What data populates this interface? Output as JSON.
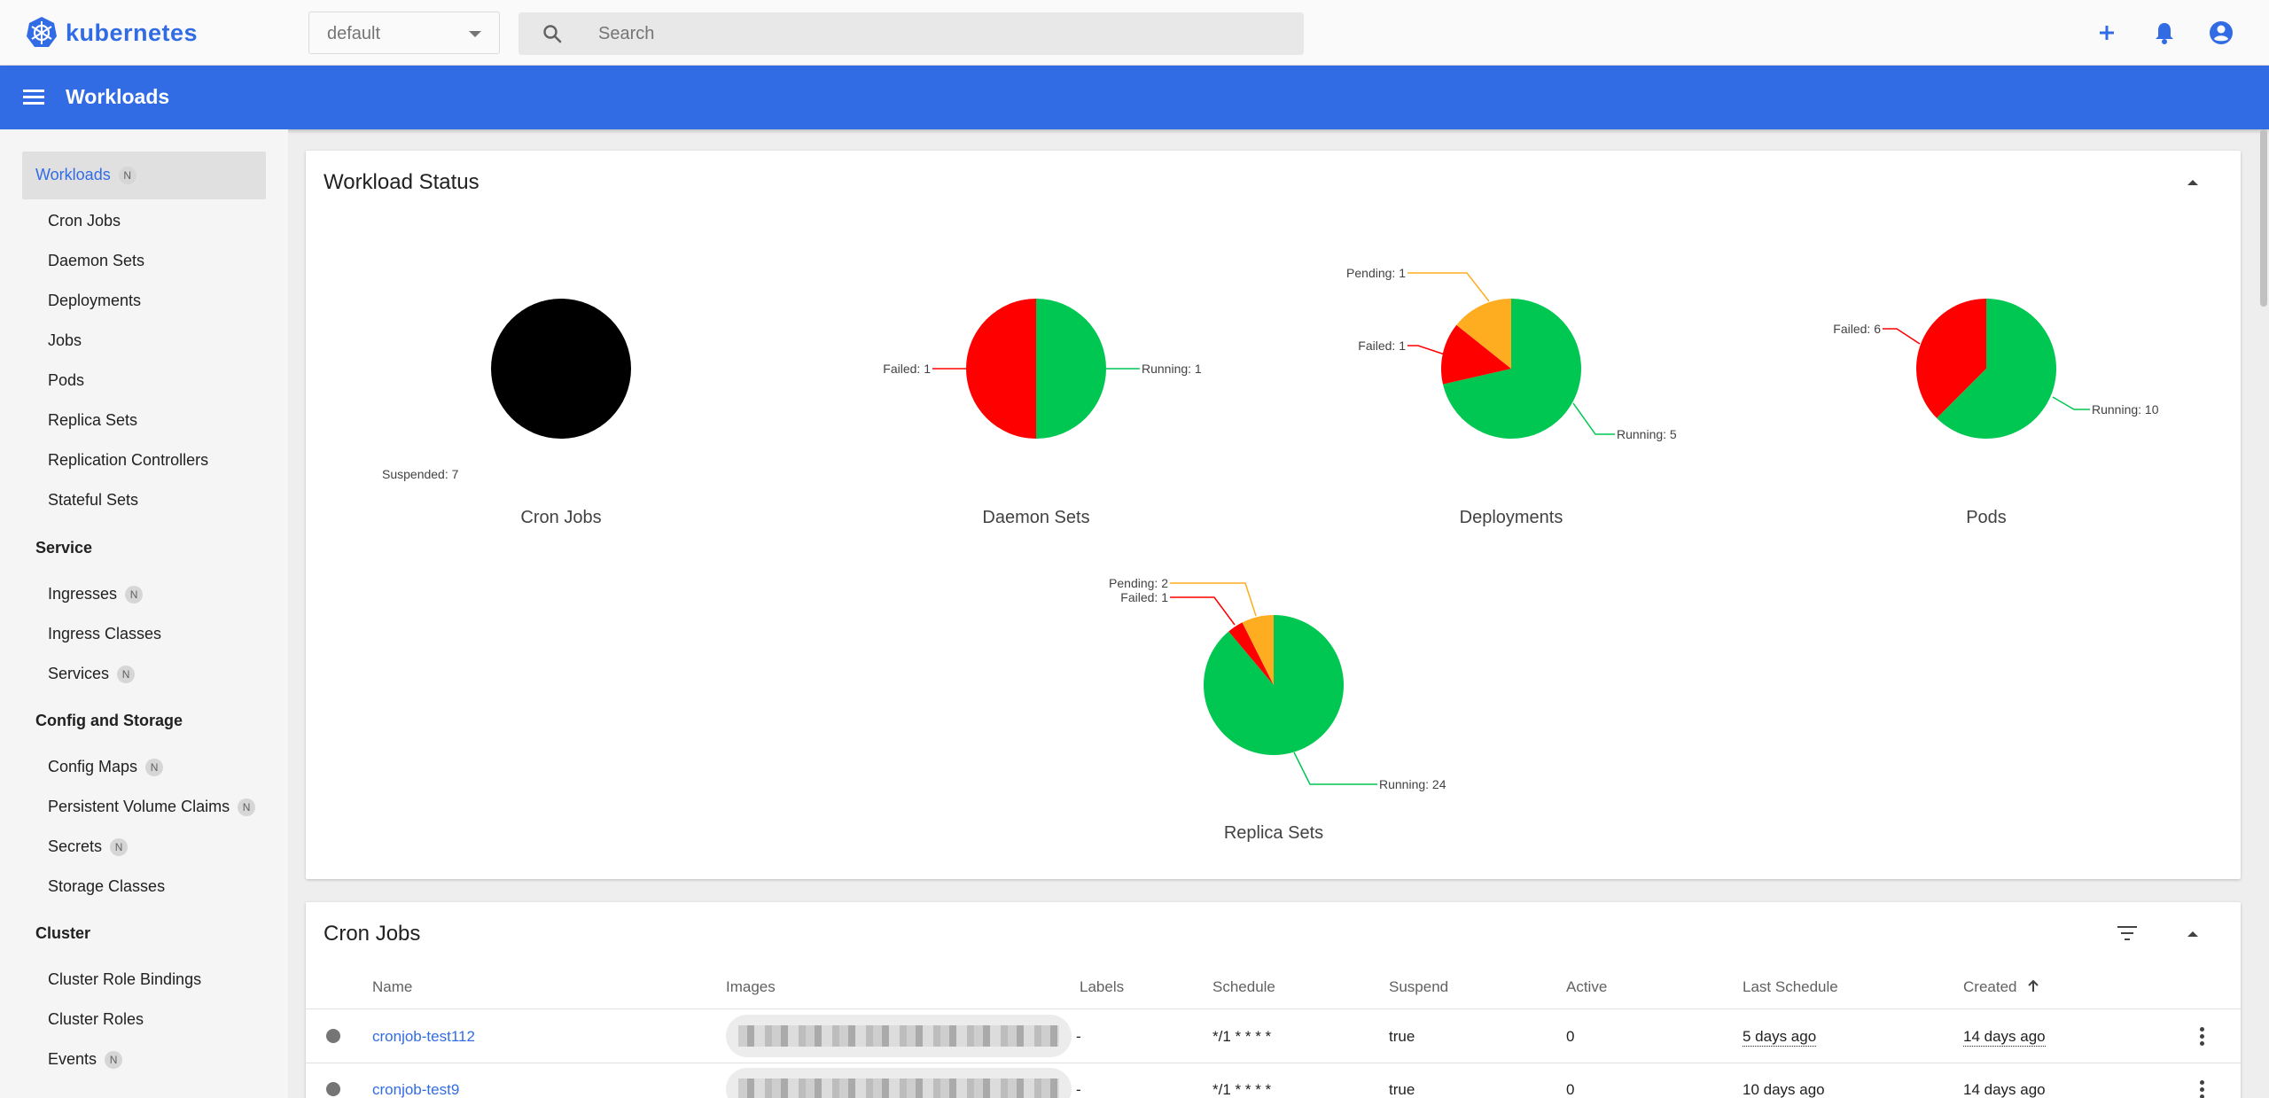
{
  "app": {
    "brand": "kubernetes",
    "title": "Workloads"
  },
  "toolbar": {
    "namespace": "default",
    "search_placeholder": "Search"
  },
  "colors": {
    "accent": "#326ce5",
    "running": "#00c752",
    "failed": "#ff0000",
    "pending": "#ffad20",
    "suspended": "#000000"
  },
  "icons": {
    "add": "plus-icon",
    "notifications": "bell-icon",
    "account": "account-circle-icon",
    "menu": "menu-icon",
    "search": "search-icon"
  },
  "sidebar": {
    "workloads": "Workloads",
    "workloads_items": [
      "Cron Jobs",
      "Daemon Sets",
      "Deployments",
      "Jobs",
      "Pods",
      "Replica Sets",
      "Replication Controllers",
      "Stateful Sets"
    ],
    "service": "Service",
    "service_items": [
      "Ingresses",
      "Ingress Classes",
      "Services"
    ],
    "config": "Config and Storage",
    "config_items": [
      "Config Maps",
      "Persistent Volume Claims",
      "Secrets",
      "Storage Classes"
    ],
    "cluster": "Cluster",
    "cluster_items": [
      "Cluster Role Bindings",
      "Cluster Roles",
      "Events"
    ],
    "badge": "N"
  },
  "status_card": {
    "title": "Workload Status"
  },
  "chart_data": [
    {
      "type": "pie",
      "title": "Cron Jobs",
      "slices": [
        {
          "label": "Suspended: 7",
          "value": 7,
          "color": "#000000"
        }
      ]
    },
    {
      "type": "pie",
      "title": "Daemon Sets",
      "slices": [
        {
          "label": "Running: 1",
          "value": 1,
          "color": "#00c752"
        },
        {
          "label": "Failed: 1",
          "value": 1,
          "color": "#ff0000"
        }
      ]
    },
    {
      "type": "pie",
      "title": "Deployments",
      "slices": [
        {
          "label": "Running: 5",
          "value": 5,
          "color": "#00c752"
        },
        {
          "label": "Failed: 1",
          "value": 1,
          "color": "#ff0000"
        },
        {
          "label": "Pending: 1",
          "value": 1,
          "color": "#ffad20"
        }
      ]
    },
    {
      "type": "pie",
      "title": "Pods",
      "slices": [
        {
          "label": "Running: 10",
          "value": 10,
          "color": "#00c752"
        },
        {
          "label": "Failed: 6",
          "value": 6,
          "color": "#ff0000"
        }
      ]
    },
    {
      "type": "pie",
      "title": "Replica Sets",
      "slices": [
        {
          "label": "Running: 24",
          "value": 24,
          "color": "#00c752"
        },
        {
          "label": "Failed: 1",
          "value": 1,
          "color": "#ff0000"
        },
        {
          "label": "Pending: 2",
          "value": 2,
          "color": "#ffad20"
        }
      ]
    }
  ],
  "cronjobs": {
    "title": "Cron Jobs",
    "columns": [
      "Name",
      "Images",
      "Labels",
      "Schedule",
      "Suspend",
      "Active",
      "Last Schedule",
      "Created"
    ],
    "rows": [
      {
        "name": "cronjob-test112",
        "labels": "-",
        "schedule": "*/1 * * * *",
        "suspend": "true",
        "active": "0",
        "last_schedule": "5 days ago",
        "created": "14 days ago"
      },
      {
        "name": "cronjob-test9",
        "labels": "-",
        "schedule": "*/1 * * * *",
        "suspend": "true",
        "active": "0",
        "last_schedule": "10 days ago",
        "created": "14 days ago"
      }
    ]
  }
}
